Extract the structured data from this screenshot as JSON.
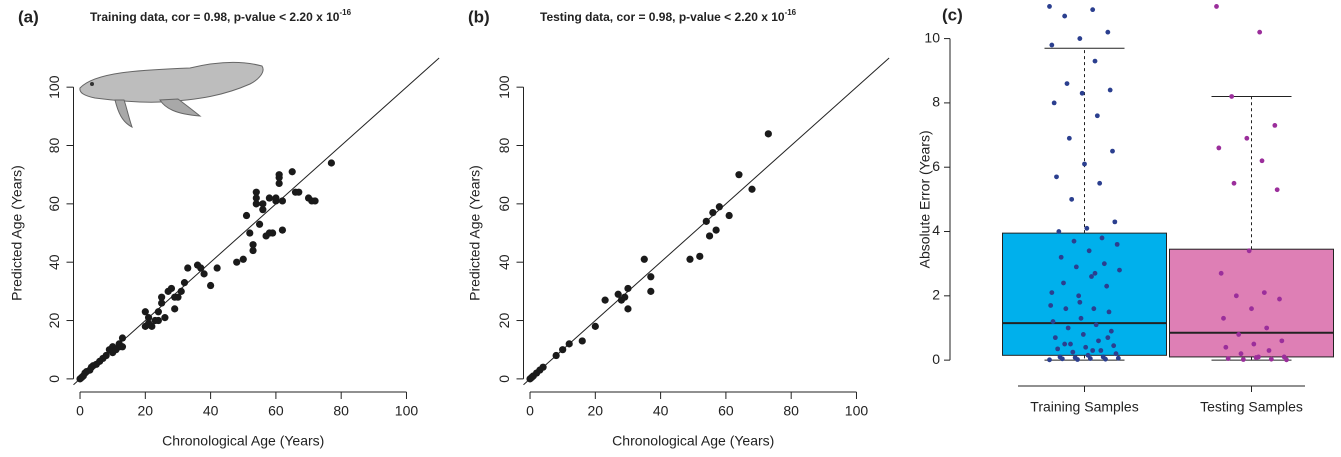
{
  "chart_data": [
    {
      "type": "scatter",
      "panel_label": "(a)",
      "title": "Training data, cor = 0.98, p-value < 2.20 x 10",
      "title_superscript": "-16",
      "x_label": "Chronological Age (Years)",
      "y_label": "Predicted Age (Years)",
      "xlim": [
        -2,
        119
      ],
      "ylim": [
        -4.5,
        110
      ],
      "xticks": [
        0,
        20,
        40,
        60,
        80,
        100
      ],
      "yticks": [
        0,
        20,
        40,
        60,
        80,
        100
      ],
      "diagonal": true,
      "color": "#1a1a1a",
      "x": [
        0,
        0.5,
        1,
        1.5,
        2,
        3,
        3.5,
        4,
        5,
        6,
        7,
        8,
        9,
        10,
        10,
        11,
        12,
        12,
        13,
        13,
        20,
        21,
        21,
        22,
        20,
        23,
        24,
        24,
        25,
        25,
        26,
        27,
        28,
        29,
        29,
        30,
        31,
        32,
        33,
        36,
        37,
        38,
        40,
        42,
        48,
        50,
        51,
        52,
        53,
        53,
        54,
        54,
        54,
        55,
        56,
        57,
        58,
        59,
        60,
        60,
        61,
        61,
        61,
        62,
        62,
        65,
        66,
        67,
        70,
        71,
        72,
        77,
        56,
        58
      ],
      "values": [
        0,
        0.5,
        1,
        2,
        2.5,
        3,
        4,
        4.5,
        5,
        6,
        7,
        8,
        10,
        11,
        9,
        10,
        11,
        12,
        14,
        11,
        23,
        21,
        19,
        18,
        18,
        20,
        20,
        23,
        26,
        28,
        21,
        30,
        31,
        24,
        28,
        28,
        30,
        33,
        38,
        39,
        38,
        36,
        32,
        38,
        40,
        41,
        56,
        50,
        46,
        44,
        62,
        64,
        60,
        53,
        58,
        49,
        50,
        50,
        61,
        62,
        69,
        67,
        70,
        51,
        61,
        71,
        64,
        64,
        62,
        61,
        61,
        74,
        60,
        62
      ]
    },
    {
      "type": "scatter",
      "panel_label": "(b)",
      "title": "Testing data, cor = 0.98, p-value < 2.20 x 10",
      "title_superscript": "-16",
      "x_label": "Chronological Age (Years)",
      "y_label": "Predicted Age (Years)",
      "xlim": [
        -2,
        119
      ],
      "ylim": [
        -4.5,
        110
      ],
      "xticks": [
        0,
        20,
        40,
        60,
        80,
        100
      ],
      "yticks": [
        0,
        20,
        40,
        60,
        80,
        100
      ],
      "diagonal": true,
      "color": "#1a1a1a",
      "x": [
        0,
        0.5,
        1,
        2,
        3,
        4,
        8,
        10,
        12,
        16,
        20,
        23,
        27,
        28,
        29,
        30,
        30,
        35,
        37,
        37,
        49,
        52,
        54,
        55,
        56,
        57,
        58,
        61,
        64,
        68,
        73
      ],
      "values": [
        0,
        0.5,
        1,
        2,
        3,
        4,
        8,
        10,
        12,
        13,
        18,
        27,
        29,
        27,
        28,
        31,
        24,
        41,
        35,
        30,
        41,
        42,
        54,
        49,
        57,
        51,
        59,
        56,
        70,
        65,
        84
      ]
    },
    {
      "type": "box",
      "panel_label": "(c)",
      "y_label": "Absolute Error (Years)",
      "ylim": [
        -0.4,
        11.2
      ],
      "yticks": [
        0,
        2,
        4,
        6,
        8,
        10
      ],
      "categories": [
        "Training Samples",
        "Testing Samples"
      ],
      "boxes": [
        {
          "whisker_low": 0,
          "q1": 0.15,
          "median": 1.15,
          "q3": 3.95,
          "whisker_high": 9.7,
          "color": "#00b0ec",
          "points_color": "#2b3f8f",
          "points": [
            11.0,
            10.9,
            10.7,
            10.2,
            10.0,
            9.8,
            9.3,
            8.6,
            8.4,
            8.3,
            8.0,
            7.6,
            6.9,
            6.5,
            6.1,
            5.7,
            5.5,
            5.0,
            4.3,
            4.1,
            4.0,
            3.8,
            3.7,
            3.6,
            3.4,
            3.2,
            3.0,
            2.9,
            2.8,
            2.6,
            2.4,
            2.3,
            2.0,
            1.7,
            1.6,
            1.6,
            1.5,
            1.3,
            1.2,
            1.1,
            1.0,
            0.9,
            0.8,
            0.7,
            0.6,
            0.5,
            0.45,
            0.4,
            0.35,
            0.3,
            0.25,
            0.2,
            0.15,
            0.1,
            0.1,
            0.08,
            0.06,
            0.05,
            0.04,
            0.03,
            0.02,
            0.01,
            0.3,
            0.5,
            0.7,
            1.8,
            2.1,
            2.7
          ]
        },
        {
          "whisker_low": 0,
          "q1": 0.1,
          "median": 0.85,
          "q3": 3.45,
          "whisker_high": 8.2,
          "color": "#de7fb5",
          "points_color": "#9b2e9b",
          "points": [
            11.0,
            10.2,
            8.2,
            7.3,
            6.9,
            6.6,
            6.2,
            5.5,
            5.3,
            3.4,
            2.7,
            2.1,
            2.0,
            1.9,
            1.6,
            1.3,
            1.0,
            0.8,
            0.6,
            0.5,
            0.4,
            0.3,
            0.2,
            0.1,
            0.08,
            0.05,
            0.03,
            0.02,
            0.01,
            0.1
          ]
        }
      ]
    }
  ]
}
